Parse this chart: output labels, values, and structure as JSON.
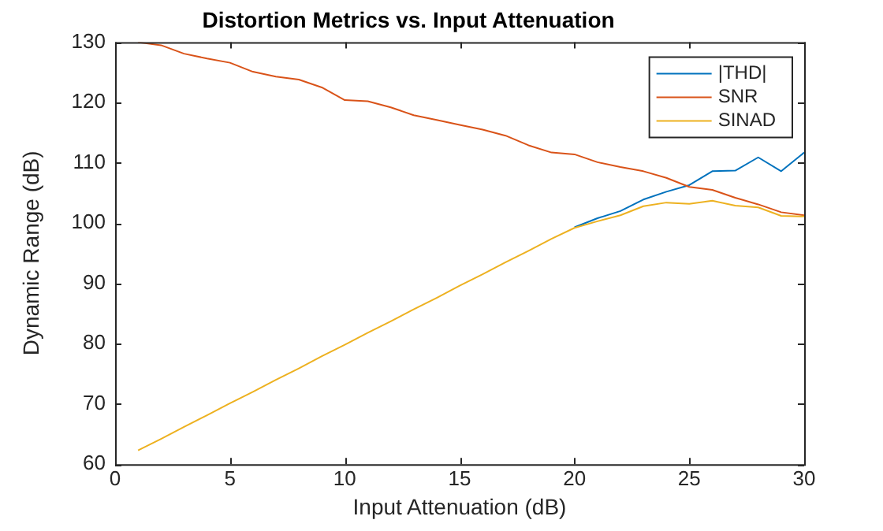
{
  "chart_data": {
    "type": "line",
    "title": "Distortion Metrics vs. Input Attenuation",
    "xlabel": "Input Attenuation (dB)",
    "ylabel": "Dynamic Range (dB)",
    "x": [
      1,
      2,
      3,
      4,
      5,
      6,
      7,
      8,
      9,
      10,
      11,
      12,
      13,
      14,
      15,
      16,
      17,
      18,
      19,
      20,
      21,
      22,
      23,
      24,
      25,
      26,
      27,
      28,
      29,
      30
    ],
    "xlim": [
      0,
      30
    ],
    "xticks": [
      0,
      5,
      10,
      15,
      20,
      25,
      30
    ],
    "ylim": [
      60,
      130
    ],
    "yticks": [
      60,
      70,
      80,
      90,
      100,
      110,
      120,
      130
    ],
    "grid": false,
    "legend": "top right",
    "marker": "none",
    "line_style": "solid",
    "series": [
      {
        "name": "|THD|",
        "color": "#0072bd",
        "values": [
          null,
          null,
          null,
          null,
          null,
          null,
          null,
          null,
          null,
          null,
          null,
          null,
          null,
          null,
          null,
          null,
          null,
          null,
          null,
          99.3,
          100.8,
          102.0,
          103.9,
          105.2,
          106.3,
          108.6,
          108.7,
          110.9,
          108.6,
          111.7
        ]
      },
      {
        "name": "SNR",
        "color": "#d95319",
        "values": [
          130,
          129.5,
          128.1,
          127.3,
          126.6,
          125.1,
          124.3,
          123.8,
          122.5,
          120.4,
          120.2,
          119.2,
          117.9,
          117.1,
          116.3,
          115.5,
          114.5,
          112.9,
          111.7,
          111.4,
          110.1,
          109.3,
          108.6,
          107.5,
          106.0,
          105.5,
          104.2,
          103.1,
          101.8,
          101.3
        ]
      },
      {
        "name": "SINAD",
        "color": "#edb120",
        "values": [
          62.3,
          64.2,
          66.2,
          68.1,
          70.1,
          72.0,
          74.0,
          75.9,
          77.9,
          79.8,
          81.8,
          83.7,
          85.7,
          87.6,
          89.6,
          91.5,
          93.5,
          95.4,
          97.4,
          99.2,
          100.3,
          101.3,
          102.8,
          103.4,
          103.2,
          103.7,
          102.9,
          102.6,
          101.2,
          101.1
        ]
      }
    ]
  }
}
